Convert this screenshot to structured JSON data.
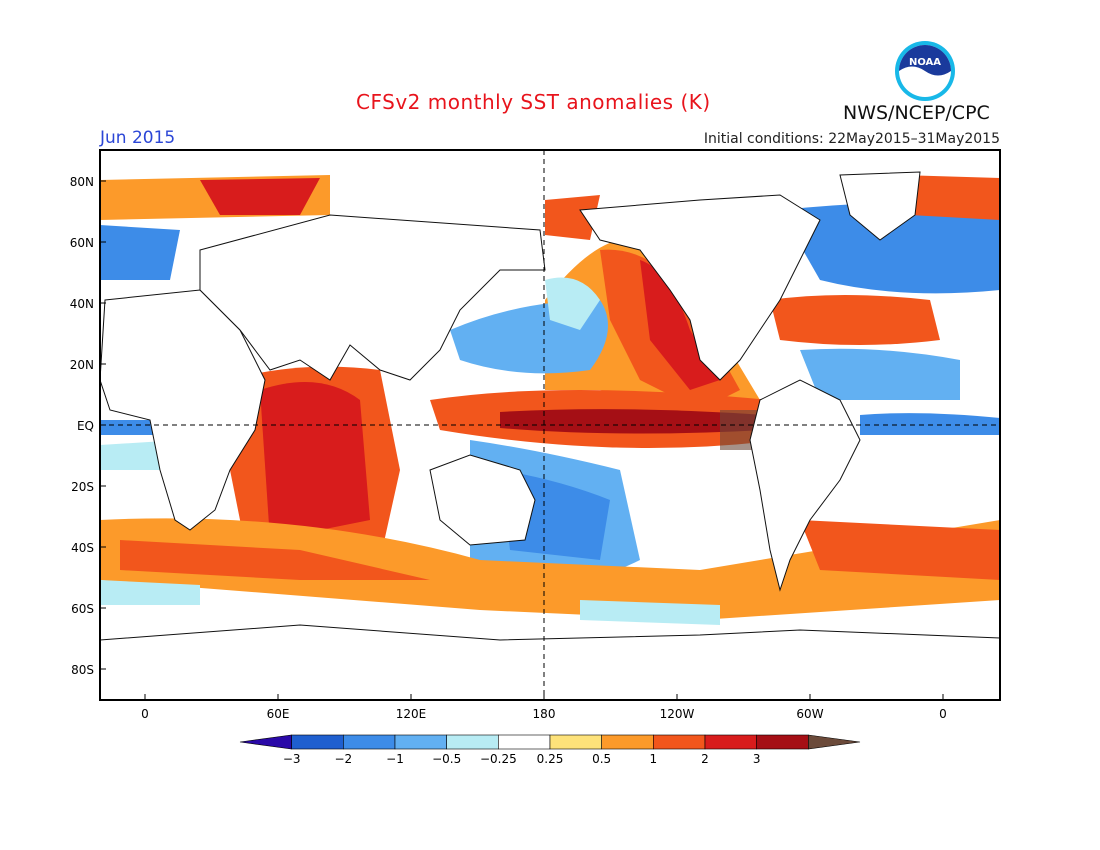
{
  "header": {
    "title": "CFSv2 monthly SST anomalies (K)",
    "month": "Jun 2015",
    "initial_conditions": "Initial conditions: 22May2015–31May2015",
    "agency": "NWS/NCEP/CPC",
    "logo_text": "NOAA"
  },
  "map": {
    "lat_labels": [
      "80N",
      "60N",
      "40N",
      "20N",
      "EQ",
      "20S",
      "40S",
      "60S",
      "80S"
    ],
    "lon_labels": [
      "0",
      "60E",
      "120E",
      "180",
      "120W",
      "60W",
      "0"
    ]
  },
  "colorbar": {
    "tick_labels": [
      "−3",
      "−2",
      "−1",
      "−0.5",
      "−0.25",
      "0.25",
      "0.5",
      "1",
      "2",
      "3"
    ],
    "colors": [
      "#2a09a8",
      "#1f5fcf",
      "#3d8ce8",
      "#62b0f2",
      "#b8ecf4",
      "#ffffff",
      "#fde27a",
      "#fc9a2a",
      "#f2561c",
      "#d81c1c",
      "#a50f15",
      "#6b4a3a"
    ]
  }
}
